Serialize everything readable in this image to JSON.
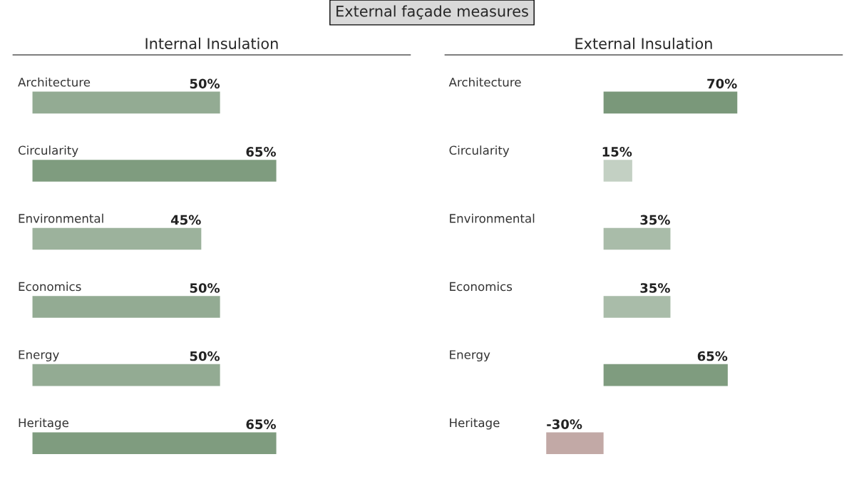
{
  "chart_data": [
    {
      "type": "other",
      "title": "External façade measures"
    },
    {
      "type": "bar",
      "orientation": "horizontal",
      "title": "Internal Insulation",
      "categories": [
        "Architecture",
        "Circularity",
        "Environmental",
        "Economics",
        "Energy",
        "Heritage"
      ],
      "values": [
        50,
        65,
        45,
        50,
        50,
        65
      ],
      "value_labels": [
        "50%",
        "65%",
        "45%",
        "50%",
        "50%",
        "65%"
      ],
      "colors": [
        "#93ab93",
        "#7f9c7f",
        "#9cb29c",
        "#93ab93",
        "#93ab93",
        "#7f9c7f"
      ]
    },
    {
      "type": "bar",
      "orientation": "horizontal",
      "title": "External Insulation",
      "categories": [
        "Architecture",
        "Circularity",
        "Environmental",
        "Economics",
        "Energy",
        "Heritage"
      ],
      "values": [
        70,
        15,
        35,
        35,
        65,
        -30
      ],
      "value_labels": [
        "70%",
        "15%",
        "35%",
        "35%",
        "65%",
        "-30%"
      ],
      "colors": [
        "#7a987a",
        "#c3d0c3",
        "#a9bca9",
        "#a9bca9",
        "#7f9c7f",
        "#c2a9a6"
      ]
    }
  ]
}
